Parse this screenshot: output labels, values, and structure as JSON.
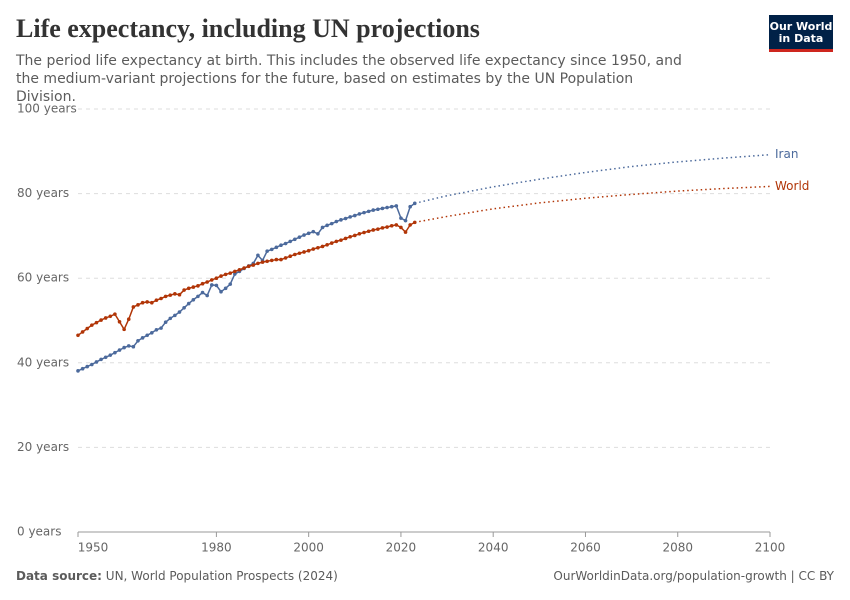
{
  "header": {
    "title": "Life expectancy, including UN projections",
    "subtitle": "The period life expectancy at birth. This includes the observed life expectancy since 1950, and the medium-variant projections for the future, based on estimates by the UN Population Division.",
    "logo": [
      "Our World",
      "in Data"
    ]
  },
  "footer": {
    "source_label": "Data source:",
    "source": "UN, World Population Prospects (2024)",
    "link": "OurWorldinData.org/population-growth | CC BY"
  },
  "chart_data": {
    "type": "line",
    "x": [
      1950,
      1951,
      1952,
      1953,
      1954,
      1955,
      1956,
      1957,
      1958,
      1959,
      1960,
      1961,
      1962,
      1963,
      1964,
      1965,
      1966,
      1967,
      1968,
      1969,
      1970,
      1971,
      1972,
      1973,
      1974,
      1975,
      1976,
      1977,
      1978,
      1979,
      1980,
      1981,
      1982,
      1983,
      1984,
      1985,
      1986,
      1987,
      1988,
      1989,
      1990,
      1991,
      1992,
      1993,
      1994,
      1995,
      1996,
      1997,
      1998,
      1999,
      2000,
      2001,
      2002,
      2003,
      2004,
      2005,
      2006,
      2007,
      2008,
      2009,
      2010,
      2011,
      2012,
      2013,
      2014,
      2015,
      2016,
      2017,
      2018,
      2019,
      2020,
      2021,
      2022,
      2023
    ],
    "projection_x": [
      2023,
      2030,
      2040,
      2050,
      2060,
      2070,
      2080,
      2090,
      2100
    ],
    "series": [
      {
        "name": "Iran",
        "color": "#4c6a9c",
        "values": [
          38.1,
          38.6,
          39.1,
          39.6,
          40.2,
          40.8,
          41.3,
          41.8,
          42.4,
          43.0,
          43.6,
          44.0,
          43.8,
          45.2,
          45.9,
          46.5,
          47.1,
          47.8,
          48.2,
          49.6,
          50.5,
          51.2,
          52.0,
          53.0,
          54.0,
          54.9,
          55.7,
          56.6,
          55.9,
          58.4,
          58.3,
          56.8,
          57.6,
          58.6,
          61.0,
          61.6,
          62.3,
          62.9,
          63.5,
          65.4,
          64.2,
          66.4,
          66.8,
          67.3,
          67.8,
          68.2,
          68.7,
          69.2,
          69.7,
          70.2,
          70.6,
          71.0,
          70.5,
          72.0,
          72.5,
          72.9,
          73.4,
          73.8,
          74.1,
          74.5,
          74.8,
          75.2,
          75.5,
          75.8,
          76.1,
          76.3,
          76.5,
          76.7,
          76.9,
          77.1,
          74.2,
          73.6,
          76.9,
          77.7
        ],
        "projection_values": [
          77.7,
          79.5,
          81.6,
          83.4,
          85.0,
          86.4,
          87.5,
          88.4,
          89.2
        ]
      },
      {
        "name": "World",
        "color": "#b13507",
        "values": [
          46.5,
          47.3,
          48.1,
          48.9,
          49.5,
          50.1,
          50.6,
          51.0,
          51.5,
          49.7,
          47.9,
          50.3,
          53.2,
          53.7,
          54.2,
          54.4,
          54.2,
          54.8,
          55.2,
          55.7,
          56.0,
          56.3,
          56.1,
          57.2,
          57.6,
          57.9,
          58.2,
          58.7,
          59.1,
          59.6,
          60.0,
          60.5,
          60.9,
          61.2,
          61.6,
          62.0,
          62.4,
          62.8,
          63.1,
          63.5,
          63.8,
          64.0,
          64.2,
          64.4,
          64.4,
          64.8,
          65.2,
          65.6,
          65.9,
          66.2,
          66.5,
          66.9,
          67.2,
          67.5,
          67.9,
          68.3,
          68.7,
          69.0,
          69.4,
          69.8,
          70.1,
          70.5,
          70.8,
          71.1,
          71.4,
          71.6,
          71.9,
          72.1,
          72.4,
          72.6,
          72.0,
          70.9,
          72.6,
          73.2
        ],
        "projection_values": [
          73.2,
          74.6,
          76.4,
          77.8,
          78.9,
          79.8,
          80.6,
          81.2,
          81.7
        ]
      }
    ],
    "xlim": [
      1950,
      2100
    ],
    "xticks": [
      1950,
      1980,
      2000,
      2020,
      2040,
      2060,
      2080,
      2100
    ],
    "ylim": [
      0,
      100
    ],
    "yticks": [
      {
        "value": 0,
        "label": "0 years"
      },
      {
        "value": 20,
        "label": "20 years"
      },
      {
        "value": 40,
        "label": "40 years"
      },
      {
        "value": 60,
        "label": "60 years"
      },
      {
        "value": 80,
        "label": "80 years"
      },
      {
        "value": 100,
        "label": "100 years"
      }
    ],
    "grid": true
  }
}
